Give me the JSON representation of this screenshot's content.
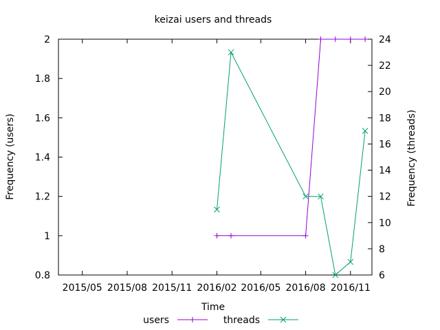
{
  "chart_data": {
    "type": "line",
    "title": "keizai users and threads",
    "xlabel": "Time",
    "ylabel_left": "Frequency (users)",
    "ylabel_right": "Frequency (threads)",
    "x_range": [
      "2015-03-13",
      "2016-12-15"
    ],
    "x_ticks": [
      {
        "date": "2015-05-01",
        "label": "2015/05"
      },
      {
        "date": "2015-08-01",
        "label": "2015/08"
      },
      {
        "date": "2015-11-01",
        "label": "2015/11"
      },
      {
        "date": "2016-02-01",
        "label": "2016/02"
      },
      {
        "date": "2016-05-01",
        "label": "2016/05"
      },
      {
        "date": "2016-08-01",
        "label": "2016/08"
      },
      {
        "date": "2016-11-01",
        "label": "2016/11"
      }
    ],
    "y_left": {
      "min": 0.8,
      "max": 2,
      "ticks": [
        "0.8",
        "1",
        "1.2",
        "1.4",
        "1.6",
        "1.8",
        "2"
      ]
    },
    "y_right": {
      "min": 6,
      "max": 24,
      "ticks": [
        "6",
        "8",
        "10",
        "12",
        "14",
        "16",
        "18",
        "20",
        "22",
        "24"
      ]
    },
    "legend_position": "bottom",
    "series": [
      {
        "name": "users",
        "axis": "left",
        "color": "#9400d3",
        "marker": "plus",
        "x": [
          "2016-02-01",
          "2016-03-01",
          "2016-08-01",
          "2016-09-01",
          "2016-10-01",
          "2016-11-01",
          "2016-12-01"
        ],
        "y": [
          1,
          1,
          1,
          2,
          2,
          2,
          2
        ]
      },
      {
        "name": "threads",
        "axis": "right",
        "color": "#009e73",
        "marker": "cross",
        "x": [
          "2016-02-01",
          "2016-03-01",
          "2016-08-01",
          "2016-09-01",
          "2016-10-01",
          "2016-11-01",
          "2016-12-01"
        ],
        "y": [
          11,
          23,
          12,
          12,
          6,
          7,
          17
        ]
      }
    ]
  }
}
